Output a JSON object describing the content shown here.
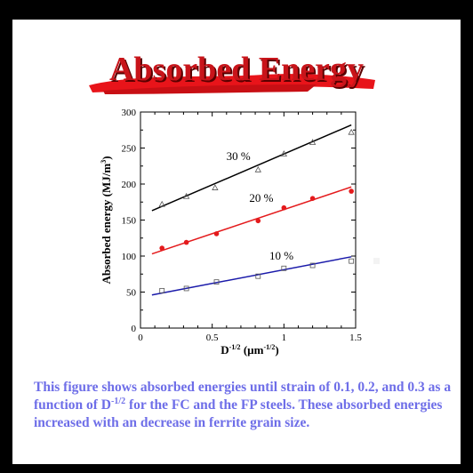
{
  "slide": {
    "title": "Absorbed Energy",
    "caption_parts": {
      "p1": "This figure shows absorbed energies until strain of 0.1, 0.2, and 0.3 as a function of D",
      "p1_sup": "-1/2",
      "p2": " for the FC and the FP steels. These absorbed energies increased with an decrease in ferrite grain size."
    }
  },
  "chart_data": {
    "type": "scatter",
    "xlabel_base": "D",
    "xlabel_sup": "-1/2",
    "xlabel_unit_base": "(µm",
    "xlabel_unit_sup": "-1/2",
    "xlabel_unit_close": ")",
    "ylabel_base": "Absorbed energy (MJ/m",
    "ylabel_sup": "3",
    "ylabel_close": ")",
    "xlim": [
      0,
      1.5
    ],
    "ylim": [
      0,
      300
    ],
    "xticks": [
      0,
      0.5,
      1,
      1.5
    ],
    "xtick_labels": [
      "0",
      "0.5",
      "1",
      "1.5"
    ],
    "yticks": [
      0,
      50,
      100,
      150,
      200,
      250,
      300
    ],
    "ytick_labels": [
      "0",
      "50",
      "100",
      "150",
      "200",
      "250",
      "300"
    ],
    "series": [
      {
        "name": "30 %",
        "color": "#000000",
        "marker": "triangle-open",
        "x": [
          0.15,
          0.32,
          0.52,
          0.82,
          1.0,
          1.2,
          1.47
        ],
        "y": [
          172,
          183,
          195,
          220,
          242,
          258,
          272
        ],
        "fit": [
          [
            0.08,
            163
          ],
          [
            1.47,
            282
          ]
        ],
        "label_pos": [
          0.72,
          238
        ]
      },
      {
        "name": "20 %",
        "color": "#e41a1c",
        "marker": "circle-filled",
        "x": [
          0.15,
          0.32,
          0.53,
          0.82,
          1.0,
          1.2,
          1.47
        ],
        "y": [
          111,
          119,
          131,
          149,
          167,
          180,
          190
        ],
        "fit": [
          [
            0.08,
            103
          ],
          [
            1.47,
            196
          ]
        ],
        "label_pos": [
          0.88,
          180
        ]
      },
      {
        "name": "10 %",
        "color": "#1a1aaa",
        "marker": "square-open",
        "x": [
          0.15,
          0.32,
          0.53,
          0.82,
          1.0,
          1.2,
          1.47
        ],
        "y": [
          52,
          55,
          64,
          72,
          83,
          87,
          93
        ],
        "fit": [
          [
            0.08,
            46
          ],
          [
            1.47,
            99
          ]
        ],
        "label_pos": [
          1.02,
          100
        ]
      }
    ]
  }
}
